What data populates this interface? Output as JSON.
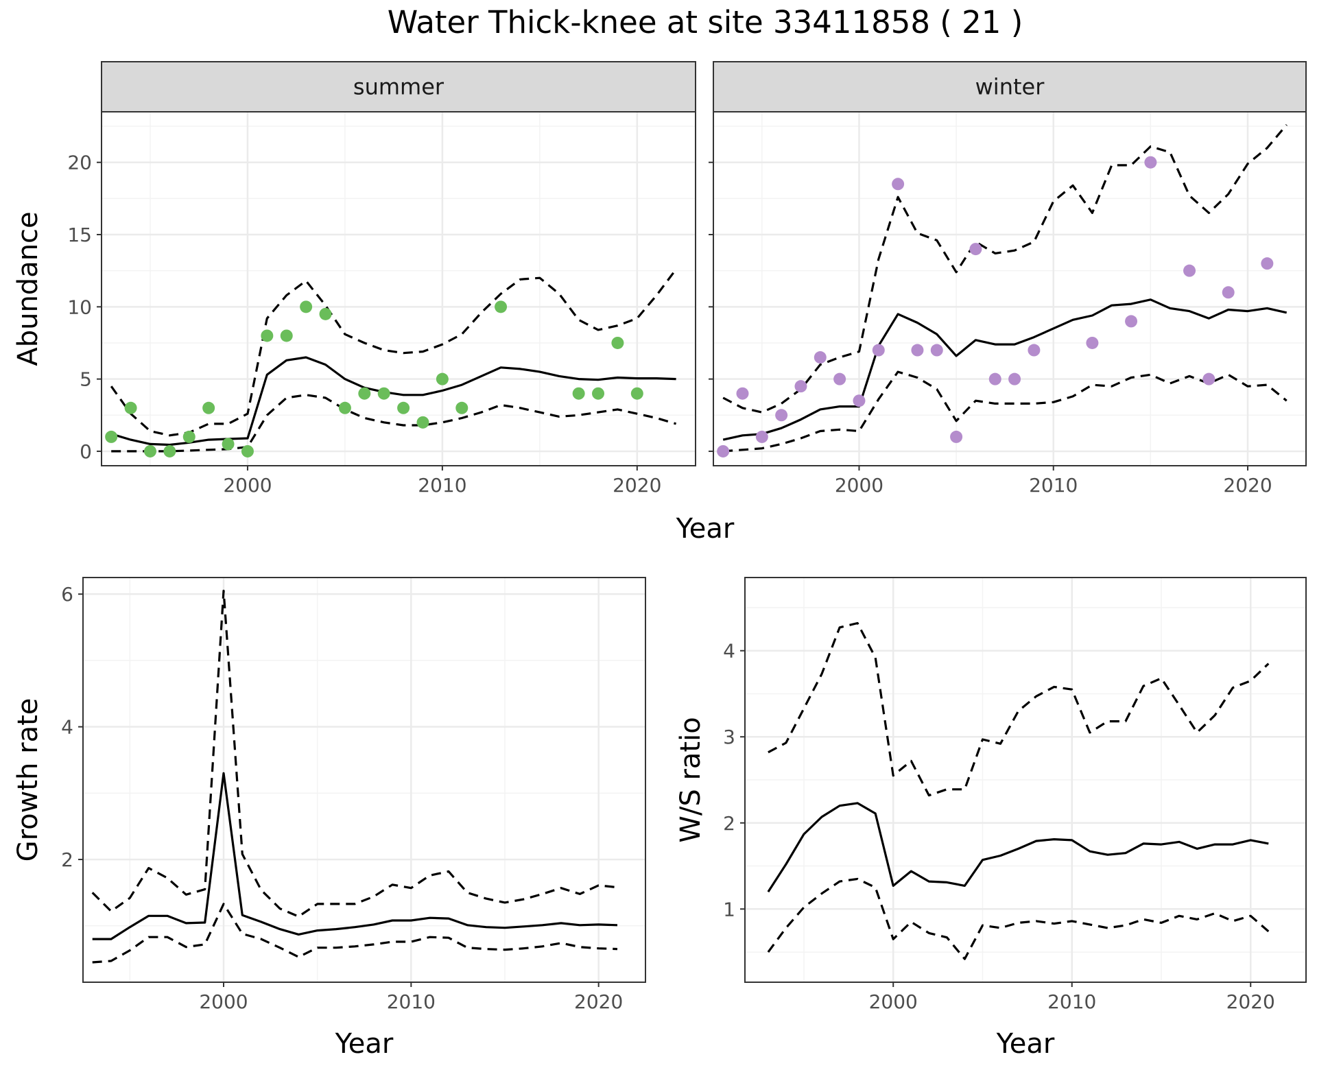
{
  "title": "Water Thick-knee at site 33411858 ( 21 )",
  "colors": {
    "summer": "#6abd5a",
    "winter": "#b48ccc",
    "line": "#000000",
    "grid_major": "#ebebeb",
    "grid_minor": "#f3f3f3",
    "strip": "#d9d9d9"
  },
  "chart_data": [
    {
      "type": "line",
      "panel": "summer",
      "strip_label": "summer",
      "xlabel": "Year",
      "ylabel": "Abundance",
      "xlim": [
        1992.5,
        2023.0
      ],
      "ylim": [
        -1.0,
        23.5
      ],
      "x_ticks": [
        2000,
        2010,
        2020
      ],
      "y_ticks": [
        0,
        5,
        10,
        15,
        20
      ],
      "grid": true,
      "observed": {
        "x": [
          1993,
          1994,
          1995,
          1996,
          1997,
          1998,
          1999,
          2000,
          2001,
          2002,
          2003,
          2004,
          2005,
          2006,
          2007,
          2008,
          2009,
          2010,
          2011,
          2013,
          2017,
          2018,
          2019,
          2020
        ],
        "y": [
          1,
          3,
          0,
          0,
          1,
          3,
          0.5,
          0,
          8,
          8,
          10,
          9.5,
          3,
          4,
          4,
          3,
          2,
          5,
          3,
          10,
          4,
          4,
          7.5,
          4
        ]
      },
      "series": [
        {
          "role": "estimate",
          "x": [
            1993,
            1994,
            1995,
            1996,
            1997,
            1998,
            1999,
            2000,
            2001,
            2002,
            2003,
            2004,
            2005,
            2006,
            2007,
            2008,
            2009,
            2010,
            2011,
            2012,
            2013,
            2014,
            2015,
            2016,
            2017,
            2018,
            2019,
            2020,
            2021,
            2022
          ],
          "values": [
            1.2,
            0.8,
            0.5,
            0.45,
            0.6,
            0.8,
            0.85,
            0.9,
            5.3,
            6.3,
            6.5,
            6.0,
            5.0,
            4.4,
            4.1,
            3.9,
            3.9,
            4.2,
            4.6,
            5.2,
            5.8,
            5.7,
            5.5,
            5.2,
            5.0,
            4.95,
            5.1,
            5.05,
            5.05,
            5.0
          ]
        },
        {
          "role": "upper",
          "x": [
            1993,
            1994,
            1995,
            1996,
            1997,
            1998,
            1999,
            2000,
            2001,
            2002,
            2003,
            2004,
            2005,
            2006,
            2007,
            2008,
            2009,
            2010,
            2011,
            2012,
            2013,
            2014,
            2015,
            2016,
            2017,
            2018,
            2019,
            2020,
            2021,
            2022
          ],
          "values": [
            4.5,
            2.6,
            1.4,
            1.1,
            1.3,
            1.9,
            1.9,
            2.6,
            9.2,
            10.8,
            11.8,
            10.1,
            8.1,
            7.5,
            7.0,
            6.8,
            6.9,
            7.4,
            8.1,
            9.6,
            10.9,
            11.9,
            12.0,
            10.9,
            9.1,
            8.4,
            8.7,
            9.2,
            10.8,
            12.6
          ]
        },
        {
          "role": "lower",
          "x": [
            1993,
            1994,
            1995,
            1996,
            1997,
            1998,
            1999,
            2000,
            2001,
            2002,
            2003,
            2004,
            2005,
            2006,
            2007,
            2008,
            2009,
            2010,
            2011,
            2012,
            2013,
            2014,
            2015,
            2016,
            2017,
            2018,
            2019,
            2020,
            2021,
            2022
          ],
          "values": [
            0.0,
            0.0,
            0.0,
            0.0,
            0.05,
            0.1,
            0.15,
            0.3,
            2.5,
            3.7,
            3.9,
            3.7,
            2.9,
            2.3,
            2.0,
            1.8,
            1.8,
            2.0,
            2.3,
            2.7,
            3.2,
            3.0,
            2.7,
            2.4,
            2.5,
            2.7,
            2.9,
            2.6,
            2.3,
            1.9
          ]
        }
      ]
    },
    {
      "type": "line",
      "panel": "winter",
      "strip_label": "winter",
      "xlabel": "Year",
      "ylabel": "Abundance",
      "xlim": [
        1992.5,
        2023.0
      ],
      "ylim": [
        -1.0,
        23.5
      ],
      "x_ticks": [
        2000,
        2010,
        2020
      ],
      "y_ticks": [
        0,
        5,
        10,
        15,
        20
      ],
      "grid": true,
      "observed": {
        "x": [
          1993,
          1994,
          1995,
          1996,
          1997,
          1998,
          1999,
          2000,
          2001,
          2002,
          2003,
          2004,
          2005,
          2006,
          2007,
          2008,
          2009,
          2012,
          2014,
          2015,
          2017,
          2018,
          2019,
          2021
        ],
        "y": [
          0,
          4,
          1,
          2.5,
          4.5,
          6.5,
          5,
          3.5,
          7,
          18.5,
          7,
          7,
          1,
          14,
          5,
          5,
          7,
          7.5,
          9,
          20,
          12.5,
          5,
          11,
          13
        ]
      },
      "series": [
        {
          "role": "estimate",
          "x": [
            1993,
            1994,
            1995,
            1996,
            1997,
            1998,
            1999,
            2000,
            2001,
            2002,
            2003,
            2004,
            2005,
            2006,
            2007,
            2008,
            2009,
            2010,
            2011,
            2012,
            2013,
            2014,
            2015,
            2016,
            2017,
            2018,
            2019,
            2020,
            2021,
            2022
          ],
          "values": [
            0.8,
            1.1,
            1.2,
            1.6,
            2.2,
            2.9,
            3.1,
            3.1,
            7.3,
            9.5,
            8.9,
            8.1,
            6.6,
            7.7,
            7.4,
            7.4,
            7.9,
            8.5,
            9.1,
            9.4,
            10.1,
            10.2,
            10.5,
            9.9,
            9.7,
            9.2,
            9.8,
            9.7,
            9.9,
            9.6
          ]
        },
        {
          "role": "upper",
          "x": [
            1993,
            1994,
            1995,
            1996,
            1997,
            1998,
            1999,
            2000,
            2001,
            2002,
            2003,
            2004,
            2005,
            2006,
            2007,
            2008,
            2009,
            2010,
            2011,
            2012,
            2013,
            2014,
            2015,
            2016,
            2017,
            2018,
            2019,
            2020,
            2021,
            2022
          ],
          "values": [
            3.7,
            3.0,
            2.7,
            3.3,
            4.3,
            6.0,
            6.5,
            6.9,
            13.3,
            17.6,
            15.1,
            14.6,
            12.4,
            14.5,
            13.7,
            13.9,
            14.5,
            17.3,
            18.4,
            16.5,
            19.8,
            19.8,
            21.1,
            20.7,
            17.7,
            16.5,
            17.8,
            19.9,
            21.0,
            22.6
          ]
        },
        {
          "role": "lower",
          "x": [
            1993,
            1994,
            1995,
            1996,
            1997,
            1998,
            1999,
            2000,
            2001,
            2002,
            2003,
            2004,
            2005,
            2006,
            2007,
            2008,
            2009,
            2010,
            2011,
            2012,
            2013,
            2014,
            2015,
            2016,
            2017,
            2018,
            2019,
            2020,
            2021,
            2022
          ],
          "values": [
            0.0,
            0.1,
            0.2,
            0.5,
            0.9,
            1.4,
            1.5,
            1.4,
            3.6,
            5.5,
            5.1,
            4.3,
            2.1,
            3.5,
            3.3,
            3.3,
            3.3,
            3.4,
            3.8,
            4.6,
            4.5,
            5.1,
            5.3,
            4.7,
            5.2,
            4.7,
            5.3,
            4.5,
            4.6,
            3.5
          ]
        }
      ]
    },
    {
      "type": "line",
      "panel": "growth",
      "xlabel": "Year",
      "ylabel": "Growth rate",
      "xlim": [
        1992.5,
        2022.5
      ],
      "ylim": [
        0.15,
        6.25
      ],
      "x_ticks": [
        2000,
        2010,
        2020
      ],
      "y_ticks": [
        2,
        4,
        6
      ],
      "grid": true,
      "series": [
        {
          "role": "estimate",
          "x": [
            1993,
            1994,
            1995,
            1996,
            1997,
            1998,
            1999,
            2000,
            2001,
            2002,
            2003,
            2004,
            2005,
            2006,
            2007,
            2008,
            2009,
            2010,
            2011,
            2012,
            2013,
            2014,
            2015,
            2016,
            2017,
            2018,
            2019,
            2020,
            2021
          ],
          "values": [
            0.8,
            0.8,
            0.98,
            1.15,
            1.15,
            1.04,
            1.05,
            3.3,
            1.16,
            1.06,
            0.95,
            0.87,
            0.93,
            0.95,
            0.98,
            1.02,
            1.08,
            1.08,
            1.12,
            1.11,
            1.01,
            0.98,
            0.97,
            0.99,
            1.01,
            1.04,
            1.01,
            1.02,
            1.01
          ]
        },
        {
          "role": "upper",
          "x": [
            1993,
            1994,
            1995,
            1996,
            1997,
            1998,
            1999,
            2000,
            2001,
            2002,
            2003,
            2004,
            2005,
            2006,
            2007,
            2008,
            2009,
            2010,
            2011,
            2012,
            2013,
            2014,
            2015,
            2016,
            2017,
            2018,
            2019,
            2020,
            2021
          ],
          "values": [
            1.5,
            1.22,
            1.42,
            1.87,
            1.72,
            1.47,
            1.55,
            6.05,
            2.08,
            1.54,
            1.26,
            1.14,
            1.33,
            1.33,
            1.33,
            1.44,
            1.62,
            1.57,
            1.76,
            1.82,
            1.5,
            1.41,
            1.35,
            1.4,
            1.48,
            1.57,
            1.48,
            1.61,
            1.58
          ]
        },
        {
          "role": "lower",
          "x": [
            1993,
            1994,
            1995,
            1996,
            1997,
            1998,
            1999,
            2000,
            2001,
            2002,
            2003,
            2004,
            2005,
            2006,
            2007,
            2008,
            2009,
            2010,
            2011,
            2012,
            2013,
            2014,
            2015,
            2016,
            2017,
            2018,
            2019,
            2020,
            2021
          ],
          "values": [
            0.45,
            0.47,
            0.63,
            0.83,
            0.83,
            0.68,
            0.72,
            1.33,
            0.88,
            0.8,
            0.67,
            0.53,
            0.67,
            0.67,
            0.69,
            0.72,
            0.76,
            0.76,
            0.83,
            0.82,
            0.67,
            0.65,
            0.64,
            0.66,
            0.69,
            0.74,
            0.68,
            0.66,
            0.65
          ]
        }
      ]
    },
    {
      "type": "line",
      "panel": "ws-ratio",
      "xlabel": "Year",
      "ylabel": "W/S ratio",
      "xlim": [
        1991.7,
        2023.1
      ],
      "ylim": [
        0.15,
        4.85
      ],
      "x_ticks": [
        2000,
        2010,
        2020
      ],
      "y_ticks": [
        1,
        2,
        3,
        4
      ],
      "grid": true,
      "series": [
        {
          "role": "estimate",
          "x": [
            1993,
            1994,
            1995,
            1996,
            1997,
            1998,
            1999,
            2000,
            2001,
            2002,
            2003,
            2004,
            2005,
            2006,
            2007,
            2008,
            2009,
            2010,
            2011,
            2012,
            2013,
            2014,
            2015,
            2016,
            2017,
            2018,
            2019,
            2020,
            2021
          ],
          "values": [
            1.2,
            1.52,
            1.87,
            2.07,
            2.2,
            2.23,
            2.11,
            1.27,
            1.44,
            1.32,
            1.31,
            1.27,
            1.57,
            1.62,
            1.7,
            1.79,
            1.81,
            1.8,
            1.67,
            1.63,
            1.65,
            1.76,
            1.75,
            1.78,
            1.7,
            1.75,
            1.75,
            1.8,
            1.76
          ]
        },
        {
          "role": "upper",
          "x": [
            1993,
            1994,
            1995,
            1996,
            1997,
            1998,
            1999,
            2000,
            2001,
            2002,
            2003,
            2004,
            2005,
            2006,
            2007,
            2008,
            2009,
            2010,
            2011,
            2012,
            2013,
            2014,
            2015,
            2016,
            2017,
            2018,
            2019,
            2020,
            2021
          ],
          "values": [
            2.82,
            2.93,
            3.33,
            3.73,
            4.27,
            4.32,
            3.92,
            2.55,
            2.72,
            2.32,
            2.39,
            2.39,
            2.97,
            2.92,
            3.3,
            3.47,
            3.58,
            3.55,
            3.05,
            3.18,
            3.18,
            3.59,
            3.68,
            3.37,
            3.05,
            3.25,
            3.57,
            3.65,
            3.85
          ]
        },
        {
          "role": "lower",
          "x": [
            1993,
            1994,
            1995,
            1996,
            1997,
            1998,
            1999,
            2000,
            2001,
            2002,
            2003,
            2004,
            2005,
            2006,
            2007,
            2008,
            2009,
            2010,
            2011,
            2012,
            2013,
            2014,
            2015,
            2016,
            2017,
            2018,
            2019,
            2020,
            2021
          ],
          "values": [
            0.5,
            0.78,
            1.02,
            1.18,
            1.32,
            1.35,
            1.25,
            0.65,
            0.85,
            0.72,
            0.67,
            0.42,
            0.81,
            0.78,
            0.84,
            0.86,
            0.83,
            0.86,
            0.82,
            0.78,
            0.81,
            0.88,
            0.84,
            0.92,
            0.88,
            0.95,
            0.86,
            0.92,
            0.74
          ]
        }
      ]
    }
  ]
}
